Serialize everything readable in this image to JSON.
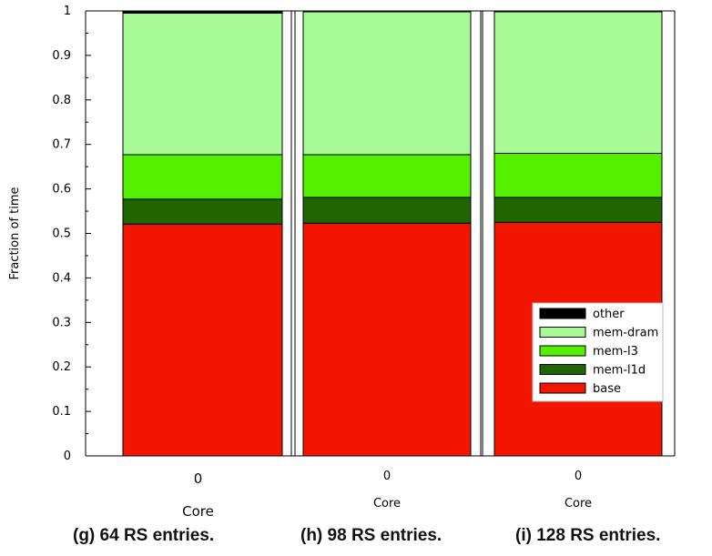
{
  "chart_data": {
    "type": "bar",
    "stacked": true,
    "ylabel": "Fraction of time",
    "ylim": [
      0,
      1
    ],
    "yticks": [
      "0",
      "0.1",
      "0.2",
      "0.3",
      "0.4",
      "0.5",
      "0.6",
      "0.7",
      "0.8",
      "0.9",
      "1"
    ],
    "legend": {
      "placement": "bottom-right of third panel",
      "entries": [
        "other",
        "mem-dram",
        "mem-l3",
        "mem-l1d",
        "base"
      ]
    },
    "series_order_bottom_to_top": [
      "base",
      "mem-l1d",
      "mem-l3",
      "mem-dram",
      "other"
    ],
    "colors": {
      "base": "#f21600",
      "mem-l1d": "#1f6600",
      "mem-l3": "#55f000",
      "mem-dram": "#a8fa96",
      "other": "#000000"
    },
    "panels": [
      {
        "caption": "(g) 64 RS entries.",
        "xlabel": "Core",
        "categories": [
          "0"
        ],
        "series": [
          {
            "name": "base",
            "values": [
              0.521
            ]
          },
          {
            "name": "mem-l1d",
            "values": [
              0.056
            ]
          },
          {
            "name": "mem-l3",
            "values": [
              0.1
            ]
          },
          {
            "name": "mem-dram",
            "values": [
              0.318
            ]
          },
          {
            "name": "other",
            "values": [
              0.005
            ]
          }
        ]
      },
      {
        "caption": "(h) 98 RS entries.",
        "xlabel": "Core",
        "categories": [
          "0"
        ],
        "series": [
          {
            "name": "base",
            "values": [
              0.523
            ]
          },
          {
            "name": "mem-l1d",
            "values": [
              0.058
            ]
          },
          {
            "name": "mem-l3",
            "values": [
              0.096
            ]
          },
          {
            "name": "mem-dram",
            "values": [
              0.321
            ]
          },
          {
            "name": "other",
            "values": [
              0.002
            ]
          }
        ]
      },
      {
        "caption": "(i) 128 RS entries.",
        "xlabel": "Core",
        "categories": [
          "0"
        ],
        "series": [
          {
            "name": "base",
            "values": [
              0.525
            ]
          },
          {
            "name": "mem-l1d",
            "values": [
              0.056
            ]
          },
          {
            "name": "mem-l3",
            "values": [
              0.099
            ]
          },
          {
            "name": "mem-dram",
            "values": [
              0.318
            ]
          },
          {
            "name": "other",
            "values": [
              0.002
            ]
          }
        ]
      }
    ]
  }
}
